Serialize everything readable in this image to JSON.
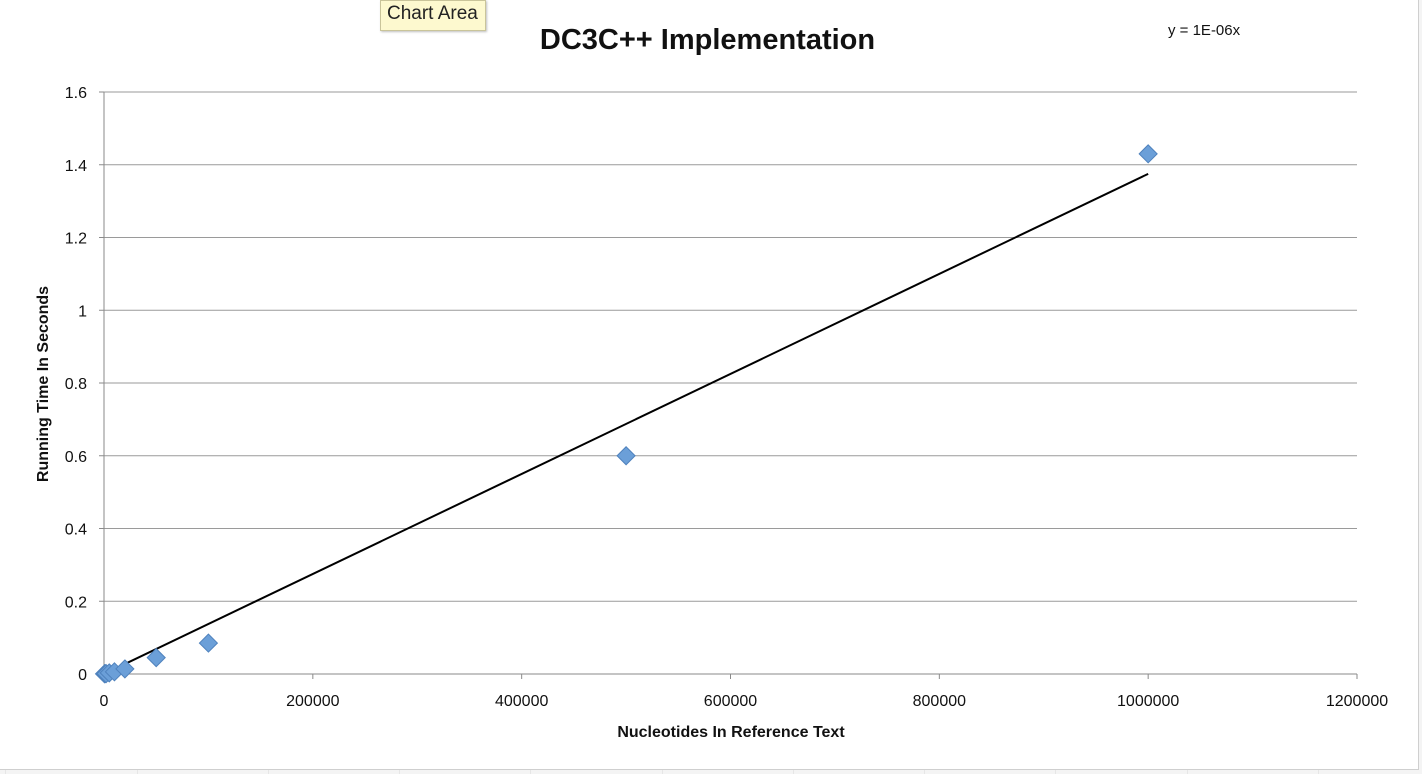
{
  "tooltip": {
    "label": "Chart Area"
  },
  "chart_data": {
    "type": "scatter",
    "title": "DC3C++ Implementation",
    "xlabel": "Nucleotides In Reference Text",
    "ylabel": "Running Time In Seconds",
    "xlim": [
      0,
      1200000
    ],
    "ylim": [
      0,
      1.6
    ],
    "xticks": [
      0,
      200000,
      400000,
      600000,
      800000,
      1000000,
      1200000
    ],
    "xtick_labels": [
      "0",
      "200000",
      "400000",
      "600000",
      "800000",
      "1000000",
      "1200000"
    ],
    "yticks": [
      0,
      0.2,
      0.4,
      0.6,
      0.8,
      1,
      1.2,
      1.4,
      1.6
    ],
    "ytick_labels": [
      "0",
      "0.2",
      "0.4",
      "0.6",
      "0.8",
      "1",
      "1.2",
      "1.4",
      "1.6"
    ],
    "grid": "horizontal",
    "legend": "none",
    "series": [
      {
        "marker": "diamond",
        "color": "#6b9fd8",
        "points": [
          {
            "x": 500,
            "y": 0.0005
          },
          {
            "x": 1000,
            "y": 0.001
          },
          {
            "x": 2000,
            "y": 0.001
          },
          {
            "x": 5000,
            "y": 0.003
          },
          {
            "x": 10000,
            "y": 0.006
          },
          {
            "x": 20000,
            "y": 0.014
          },
          {
            "x": 50000,
            "y": 0.045
          },
          {
            "x": 100000,
            "y": 0.085
          },
          {
            "x": 500000,
            "y": 0.6
          },
          {
            "x": 1000000,
            "y": 1.43
          }
        ]
      }
    ],
    "trendline": {
      "type": "linear",
      "equation": "y = 1E-06x",
      "color": "#000000",
      "x_range": [
        0,
        1000000
      ],
      "y_range": [
        0,
        1.375
      ]
    }
  }
}
